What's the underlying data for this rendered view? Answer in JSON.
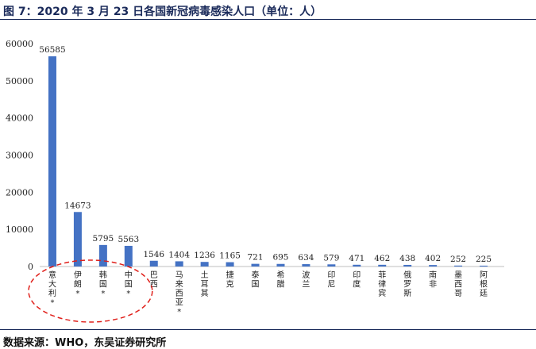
{
  "title": "图 7：2020 年 3 月 23 日各国新冠病毒感染人口（单位：人）",
  "source": "数据来源：WHO，东吴证券研究所",
  "chart_data": {
    "type": "bar",
    "categories": [
      "意大利*",
      "伊朗*",
      "韩国*",
      "中国*",
      "巴西",
      "马来西亚*",
      "土耳其",
      "捷克",
      "泰国",
      "希腊",
      "波兰",
      "印尼",
      "印度",
      "菲律宾",
      "俄罗斯",
      "南非",
      "墨西哥",
      "阿根廷"
    ],
    "values": [
      56585,
      14673,
      5795,
      5563,
      1546,
      1404,
      1236,
      1165,
      721,
      695,
      634,
      579,
      471,
      462,
      438,
      402,
      252,
      225
    ],
    "y_ticks": [
      0,
      10000,
      20000,
      30000,
      40000,
      50000,
      60000
    ],
    "ylim": [
      0,
      60000
    ],
    "bar_color": "#4472c4",
    "highlight_color": "#e0201b",
    "grid": false,
    "annotation": "dashed ellipse around the first four categories"
  }
}
